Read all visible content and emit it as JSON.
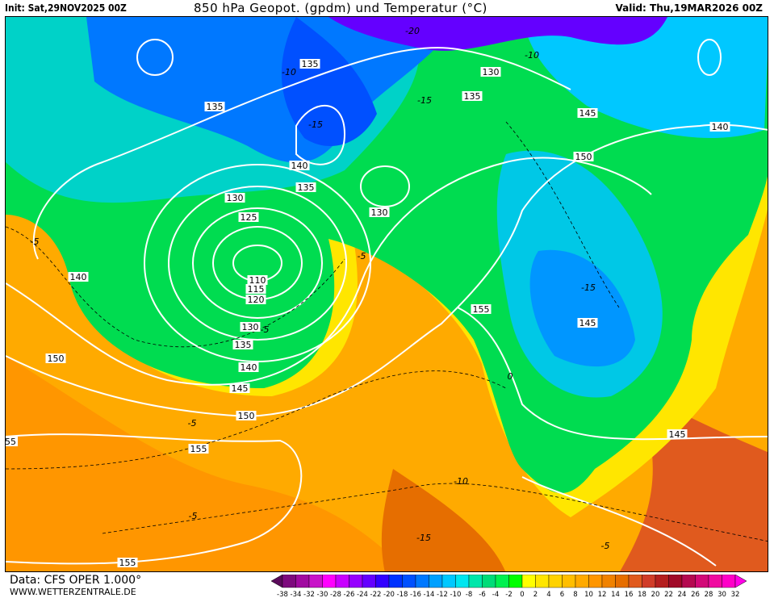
{
  "header": {
    "init": "Init: Sat,29NOV2025 00Z",
    "title": "850 hPa Geopot. (gpdm) und Temperatur (°C)",
    "valid": "Valid: Thu,19MAR2026 00Z"
  },
  "footer": {
    "data_source": "Data: CFS OPER 1.000°",
    "website": "WWW.WETTERZENTRALE.DE"
  },
  "map": {
    "geopotential_labels": [
      "135",
      "130",
      "135",
      "135",
      "145",
      "140",
      "150",
      "140",
      "135",
      "130",
      "130",
      "125",
      "140",
      "110",
      "115",
      "120",
      "155",
      "130",
      "145",
      "135",
      "150",
      "140",
      "145",
      "150",
      "145",
      "155",
      "55",
      "155"
    ],
    "temperature_labels": [
      "-20",
      "-10",
      "-10",
      "-15",
      "-15",
      "-5",
      "-5",
      "-15",
      "-5",
      "0",
      "-5",
      "-10",
      "-5",
      "-15",
      "-5"
    ]
  },
  "colorbar": {
    "labels": [
      "-38",
      "-34",
      "-32",
      "-30",
      "-28",
      "-26",
      "-24",
      "-22",
      "-20",
      "-18",
      "-16",
      "-14",
      "-12",
      "-10",
      "-8",
      "-6",
      "-4",
      "-2",
      "0",
      "2",
      "4",
      "6",
      "8",
      "10",
      "12",
      "14",
      "16",
      "18",
      "20",
      "22",
      "24",
      "26",
      "28",
      "30",
      "32"
    ],
    "colors": [
      "#5a0a5a",
      "#7d0a7d",
      "#a00aa0",
      "#c814c8",
      "#ff00ff",
      "#c800ff",
      "#9600ff",
      "#6400ff",
      "#3200ff",
      "#0032ff",
      "#0050ff",
      "#0078ff",
      "#00a0ff",
      "#00c8ff",
      "#00e6f0",
      "#00e6aa",
      "#00dc78",
      "#00f050",
      "#00ff00",
      "#ffff00",
      "#ffe600",
      "#ffd200",
      "#ffbe00",
      "#ffaa00",
      "#ff9600",
      "#f08200",
      "#e66e00",
      "#e05a1e",
      "#d03c28",
      "#b41e1e",
      "#a00a28",
      "#b40a50",
      "#d20a78",
      "#f00aa0",
      "#ff00c8",
      "#ff00e6"
    ]
  }
}
